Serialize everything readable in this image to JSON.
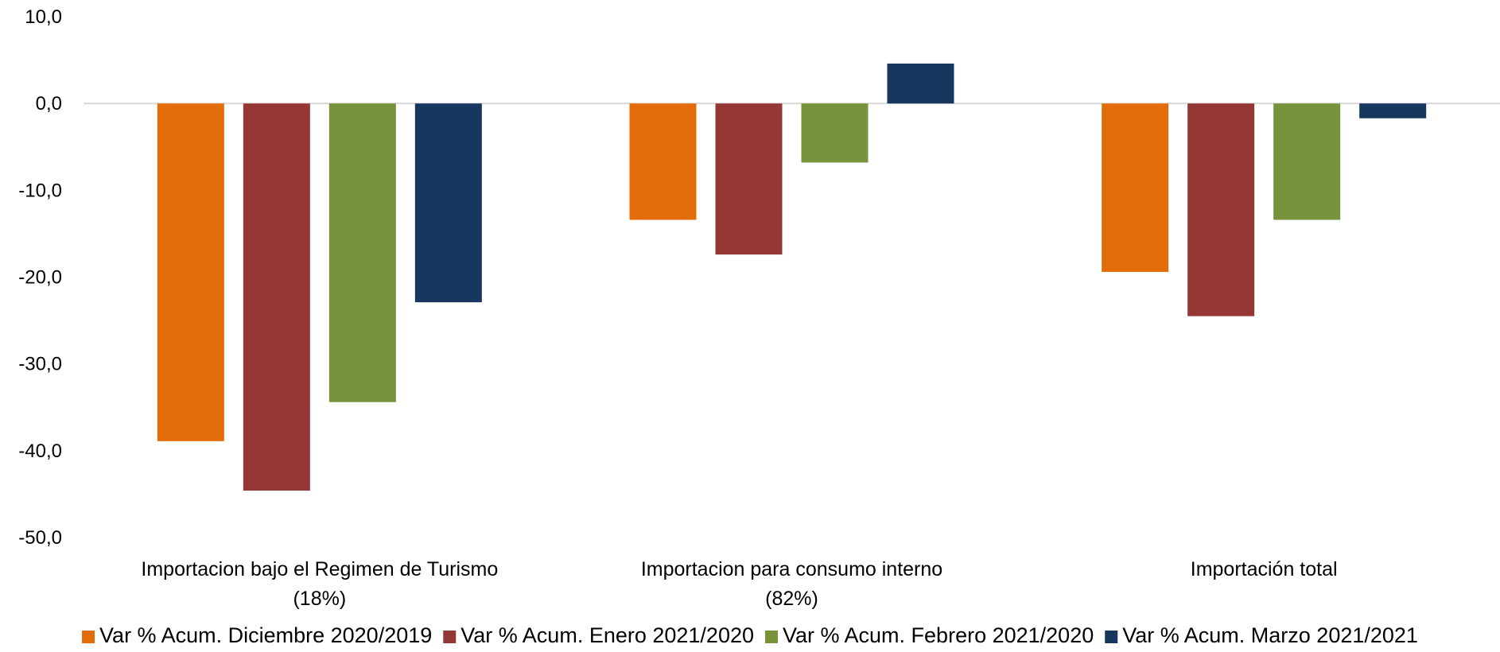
{
  "chart_data": {
    "type": "bar",
    "categories": [
      [
        "Importacion bajo el Regimen de Turismo",
        "(18%)"
      ],
      [
        "Importacion para consumo interno",
        "(82%)"
      ],
      [
        "Importación total"
      ]
    ],
    "series": [
      {
        "name": "Var % Acum. Diciembre 2020/2019",
        "color": "#E36C0A",
        "values": [
          -38.9,
          -13.4,
          -19.4
        ]
      },
      {
        "name": "Var % Acum. Enero 2021/2020",
        "color": "#953735",
        "values": [
          -44.6,
          -17.4,
          -24.5
        ]
      },
      {
        "name": "Var % Acum. Febrero 2021/2020",
        "color": "#77933C",
        "values": [
          -34.4,
          -6.8,
          -13.4
        ]
      },
      {
        "name": "Var % Acum. Marzo 2021/2021",
        "color": "#17375E",
        "values": [
          -22.9,
          4.6,
          -1.7
        ]
      }
    ],
    "yticks": [
      "10,0",
      "0,0",
      "-10,0",
      "-20,0",
      "-30,0",
      "-40,0",
      "-50,0"
    ],
    "ytick_values": [
      10,
      0,
      -10,
      -20,
      -30,
      -40,
      -50
    ],
    "ylim": [
      -50,
      10
    ],
    "grid": false,
    "zero_line": true,
    "legend_position": "bottom"
  }
}
